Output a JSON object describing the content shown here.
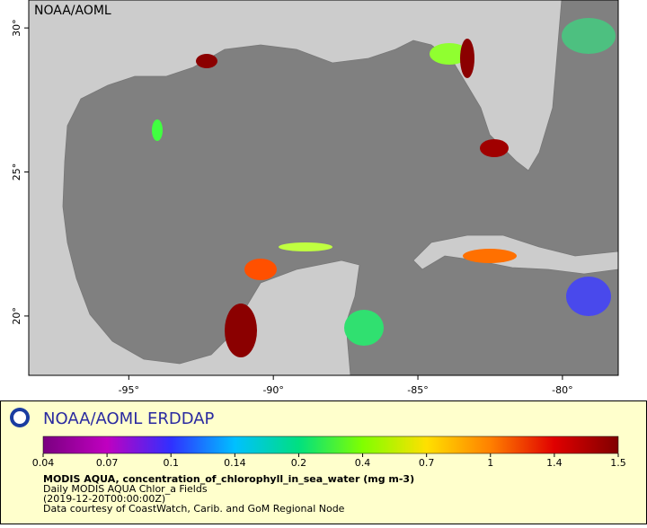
{
  "map": {
    "watermark": "NOAA/AOML",
    "lon_range": [
      -98.46,
      -78.07
    ],
    "lat_range": [
      17.94,
      30.97
    ],
    "lon_ticks": [
      {
        "value": -95,
        "label": "-95°"
      },
      {
        "value": -90,
        "label": "-90°"
      },
      {
        "value": -85,
        "label": "-85°"
      },
      {
        "value": -80,
        "label": "-80°"
      }
    ],
    "lat_ticks": [
      {
        "value": 30,
        "label": "30°"
      },
      {
        "value": 25,
        "label": "25°"
      },
      {
        "value": 20,
        "label": "20°"
      }
    ]
  },
  "legend": {
    "title": "NOAA/AOML ERDDAP",
    "colorbar_ticks": [
      0.04,
      0.07,
      0.1,
      0.14,
      0.2,
      0.4,
      0.7,
      1,
      1.4,
      1.5
    ],
    "colorbar_colors": [
      "#7a0080",
      "#c000c0",
      "#3030ff",
      "#00c0ff",
      "#00e080",
      "#80ff00",
      "#ffe000",
      "#ff8000",
      "#e00000",
      "#800000"
    ],
    "variable": "MODIS AQUA, concentration_of_chlorophyll_in_sea_water (mg m-3)",
    "dataset": "Daily MODIS AQUA Chlor_a Fields",
    "time": "(2019-12-20T00:00:00Z)",
    "credit": "Data courtesy of CoastWatch, Carib. and GoM Regional Node"
  }
}
